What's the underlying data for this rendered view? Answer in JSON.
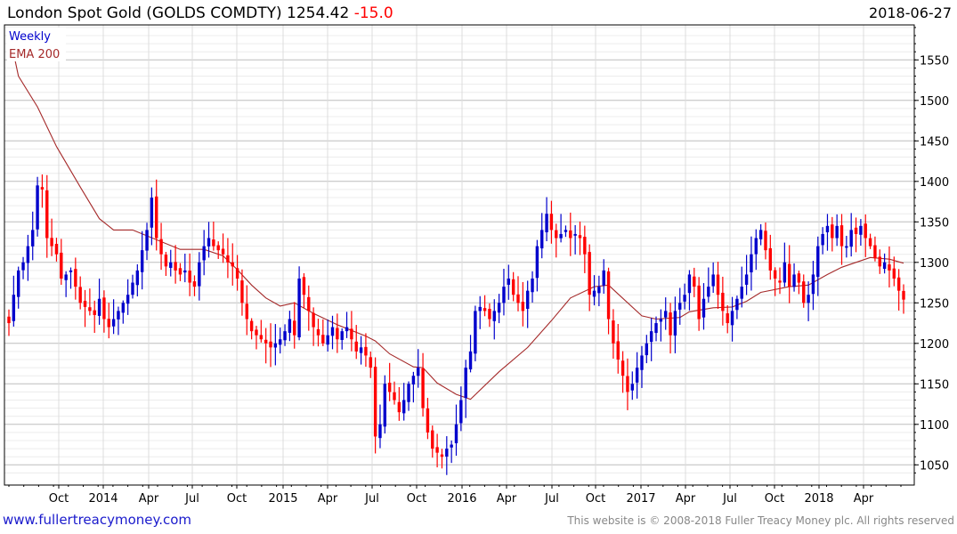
{
  "header": {
    "title": "London Spot Gold (GOLDS COMDTY) 1254.42",
    "change": "-15.0",
    "date": "2018-06-27"
  },
  "footer": {
    "site": "www.fullertreacymoney.com",
    "copyright": "This website is © 2008-2018 Fuller Treacy Money plc. All rights reserved"
  },
  "colors": {
    "up": "#0000cc",
    "down": "#ff0000",
    "ema": "#a52a2a",
    "change": "#ff0000"
  },
  "chart_data": {
    "type": "candlestick",
    "title": "London Spot Gold (GOLDS COMDTY)",
    "legend": [
      {
        "label": "Weekly",
        "color": "#0000cc"
      },
      {
        "label": "EMA 200",
        "color": "#a52a2a"
      }
    ],
    "legend_placement": "top-left",
    "ylim": [
      1030,
      1590
    ],
    "y_ticks": [
      1050,
      1100,
      1150,
      1200,
      1250,
      1300,
      1350,
      1400,
      1450,
      1500,
      1550
    ],
    "x_ticks": [
      "Oct",
      "2014",
      "Apr",
      "Jul",
      "Oct",
      "2015",
      "Apr",
      "Jul",
      "Oct",
      "2016",
      "Apr",
      "Jul",
      "Oct",
      "2017",
      "Apr",
      "Jul",
      "Oct",
      "2018",
      "Apr"
    ],
    "grid": true,
    "weekly_close": [
      1225,
      1260,
      1290,
      1300,
      1320,
      1340,
      1395,
      1390,
      1330,
      1320,
      1310,
      1280,
      1285,
      1290,
      1270,
      1250,
      1245,
      1240,
      1235,
      1255,
      1230,
      1220,
      1230,
      1240,
      1250,
      1260,
      1275,
      1290,
      1315,
      1340,
      1380,
      1330,
      1310,
      1295,
      1300,
      1290,
      1285,
      1290,
      1275,
      1270,
      1300,
      1320,
      1330,
      1320,
      1315,
      1310,
      1300,
      1295,
      1280,
      1250,
      1230,
      1215,
      1210,
      1205,
      1200,
      1195,
      1200,
      1205,
      1215,
      1230,
      1210,
      1280,
      1260,
      1240,
      1220,
      1210,
      1200,
      1210,
      1220,
      1205,
      1215,
      1220,
      1205,
      1190,
      1195,
      1185,
      1170,
      1085,
      1100,
      1150,
      1140,
      1130,
      1115,
      1130,
      1150,
      1160,
      1170,
      1120,
      1090,
      1070,
      1065,
      1060,
      1070,
      1075,
      1100,
      1130,
      1170,
      1190,
      1240,
      1245,
      1240,
      1230,
      1240,
      1250,
      1270,
      1280,
      1260,
      1250,
      1240,
      1265,
      1280,
      1320,
      1340,
      1360,
      1340,
      1330,
      1335,
      1340,
      1330,
      1335,
      1330,
      1310,
      1260,
      1265,
      1270,
      1290,
      1230,
      1200,
      1180,
      1160,
      1140,
      1150,
      1170,
      1185,
      1200,
      1215,
      1225,
      1230,
      1240,
      1210,
      1240,
      1250,
      1260,
      1285,
      1270,
      1230,
      1255,
      1270,
      1285,
      1260,
      1240,
      1225,
      1240,
      1255,
      1270,
      1285,
      1310,
      1330,
      1340,
      1315,
      1290,
      1280,
      1275,
      1300,
      1270,
      1285,
      1275,
      1250,
      1260,
      1285,
      1320,
      1335,
      1345,
      1330,
      1345,
      1320,
      1320,
      1340,
      1335,
      1345,
      1330,
      1320,
      1305,
      1295,
      1300,
      1290,
      1280,
      1265,
      1254
    ],
    "ema200_points": [
      [
        1,
        1558
      ],
      [
        2,
        1530
      ],
      [
        6,
        1492
      ],
      [
        10,
        1443
      ],
      [
        15,
        1393
      ],
      [
        19,
        1354
      ],
      [
        22,
        1340
      ],
      [
        26,
        1340
      ],
      [
        36,
        1316
      ],
      [
        41,
        1316
      ],
      [
        45,
        1308
      ],
      [
        48,
        1291
      ],
      [
        51,
        1272
      ],
      [
        54,
        1256
      ],
      [
        57,
        1246
      ],
      [
        60,
        1250
      ],
      [
        64,
        1237
      ],
      [
        69,
        1223
      ],
      [
        75,
        1209
      ],
      [
        77,
        1203
      ],
      [
        80,
        1187
      ],
      [
        85,
        1171
      ],
      [
        87,
        1170
      ],
      [
        90,
        1151
      ],
      [
        94,
        1137
      ],
      [
        97,
        1131
      ],
      [
        103,
        1165
      ],
      [
        109,
        1195
      ],
      [
        114,
        1228
      ],
      [
        118,
        1256
      ],
      [
        123,
        1270
      ],
      [
        126,
        1272
      ],
      [
        128,
        1261
      ],
      [
        133,
        1234
      ],
      [
        136,
        1230
      ],
      [
        141,
        1232
      ],
      [
        143,
        1239
      ],
      [
        148,
        1244
      ],
      [
        152,
        1245
      ],
      [
        155,
        1252
      ],
      [
        158,
        1263
      ],
      [
        164,
        1270
      ],
      [
        168,
        1272
      ],
      [
        172,
        1285
      ],
      [
        175,
        1294
      ],
      [
        178,
        1300
      ],
      [
        181,
        1306
      ],
      [
        185,
        1304
      ],
      [
        188,
        1299
      ]
    ]
  }
}
